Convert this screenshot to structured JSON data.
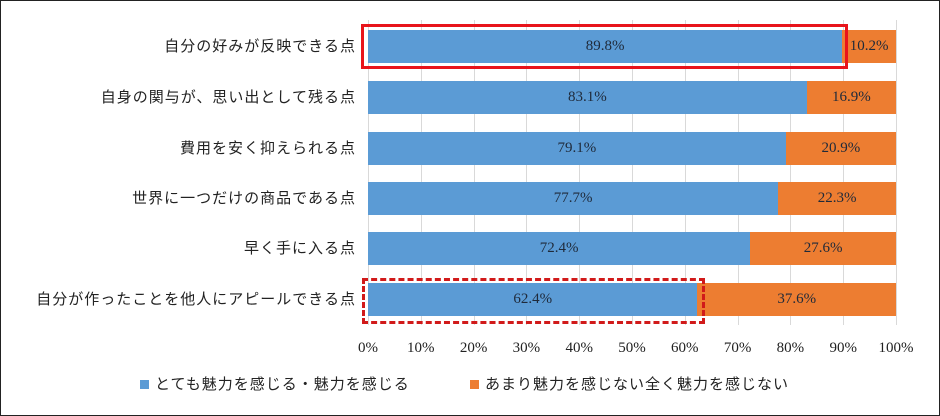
{
  "chart_data": {
    "type": "bar",
    "orientation": "horizontal",
    "stacked": true,
    "percent": true,
    "title": "",
    "xlabel": "",
    "ylabel": "",
    "xlim": [
      0,
      100
    ],
    "grid": true,
    "legend_position": "bottom",
    "categories": [
      "自分の好みが反映できる点",
      "自身の関与が、思い出として残る点",
      "費用を安く抑えられる点",
      "世界に一つだけの商品である点",
      "早く手に入る点",
      "自分が作ったことを他人にアピールできる点"
    ],
    "series": [
      {
        "name": "とても魅力を感じる・魅力を感じる",
        "color": "#5b9bd5",
        "values": [
          89.8,
          83.1,
          79.1,
          77.7,
          72.4,
          62.4
        ],
        "labels": [
          "89.8%",
          "83.1%",
          "79.1%",
          "77.7%",
          "72.4%",
          "62.4%"
        ]
      },
      {
        "name": "あまり魅力を感じない全く魅力を感じない",
        "color": "#ed7d31",
        "values": [
          10.2,
          16.9,
          20.9,
          22.3,
          27.6,
          37.6
        ],
        "labels": [
          "10.2%",
          "16.9%",
          "20.9%",
          "22.3%",
          "27.6%",
          "37.6%"
        ]
      }
    ],
    "x_ticks": [
      "0%",
      "10%",
      "20%",
      "30%",
      "40%",
      "50%",
      "60%",
      "70%",
      "80%",
      "90%",
      "100%"
    ],
    "annotations": [
      {
        "type": "solid-red-box",
        "target_category_index": 0
      },
      {
        "type": "dashed-red-box",
        "target_category_index": 5
      }
    ]
  }
}
